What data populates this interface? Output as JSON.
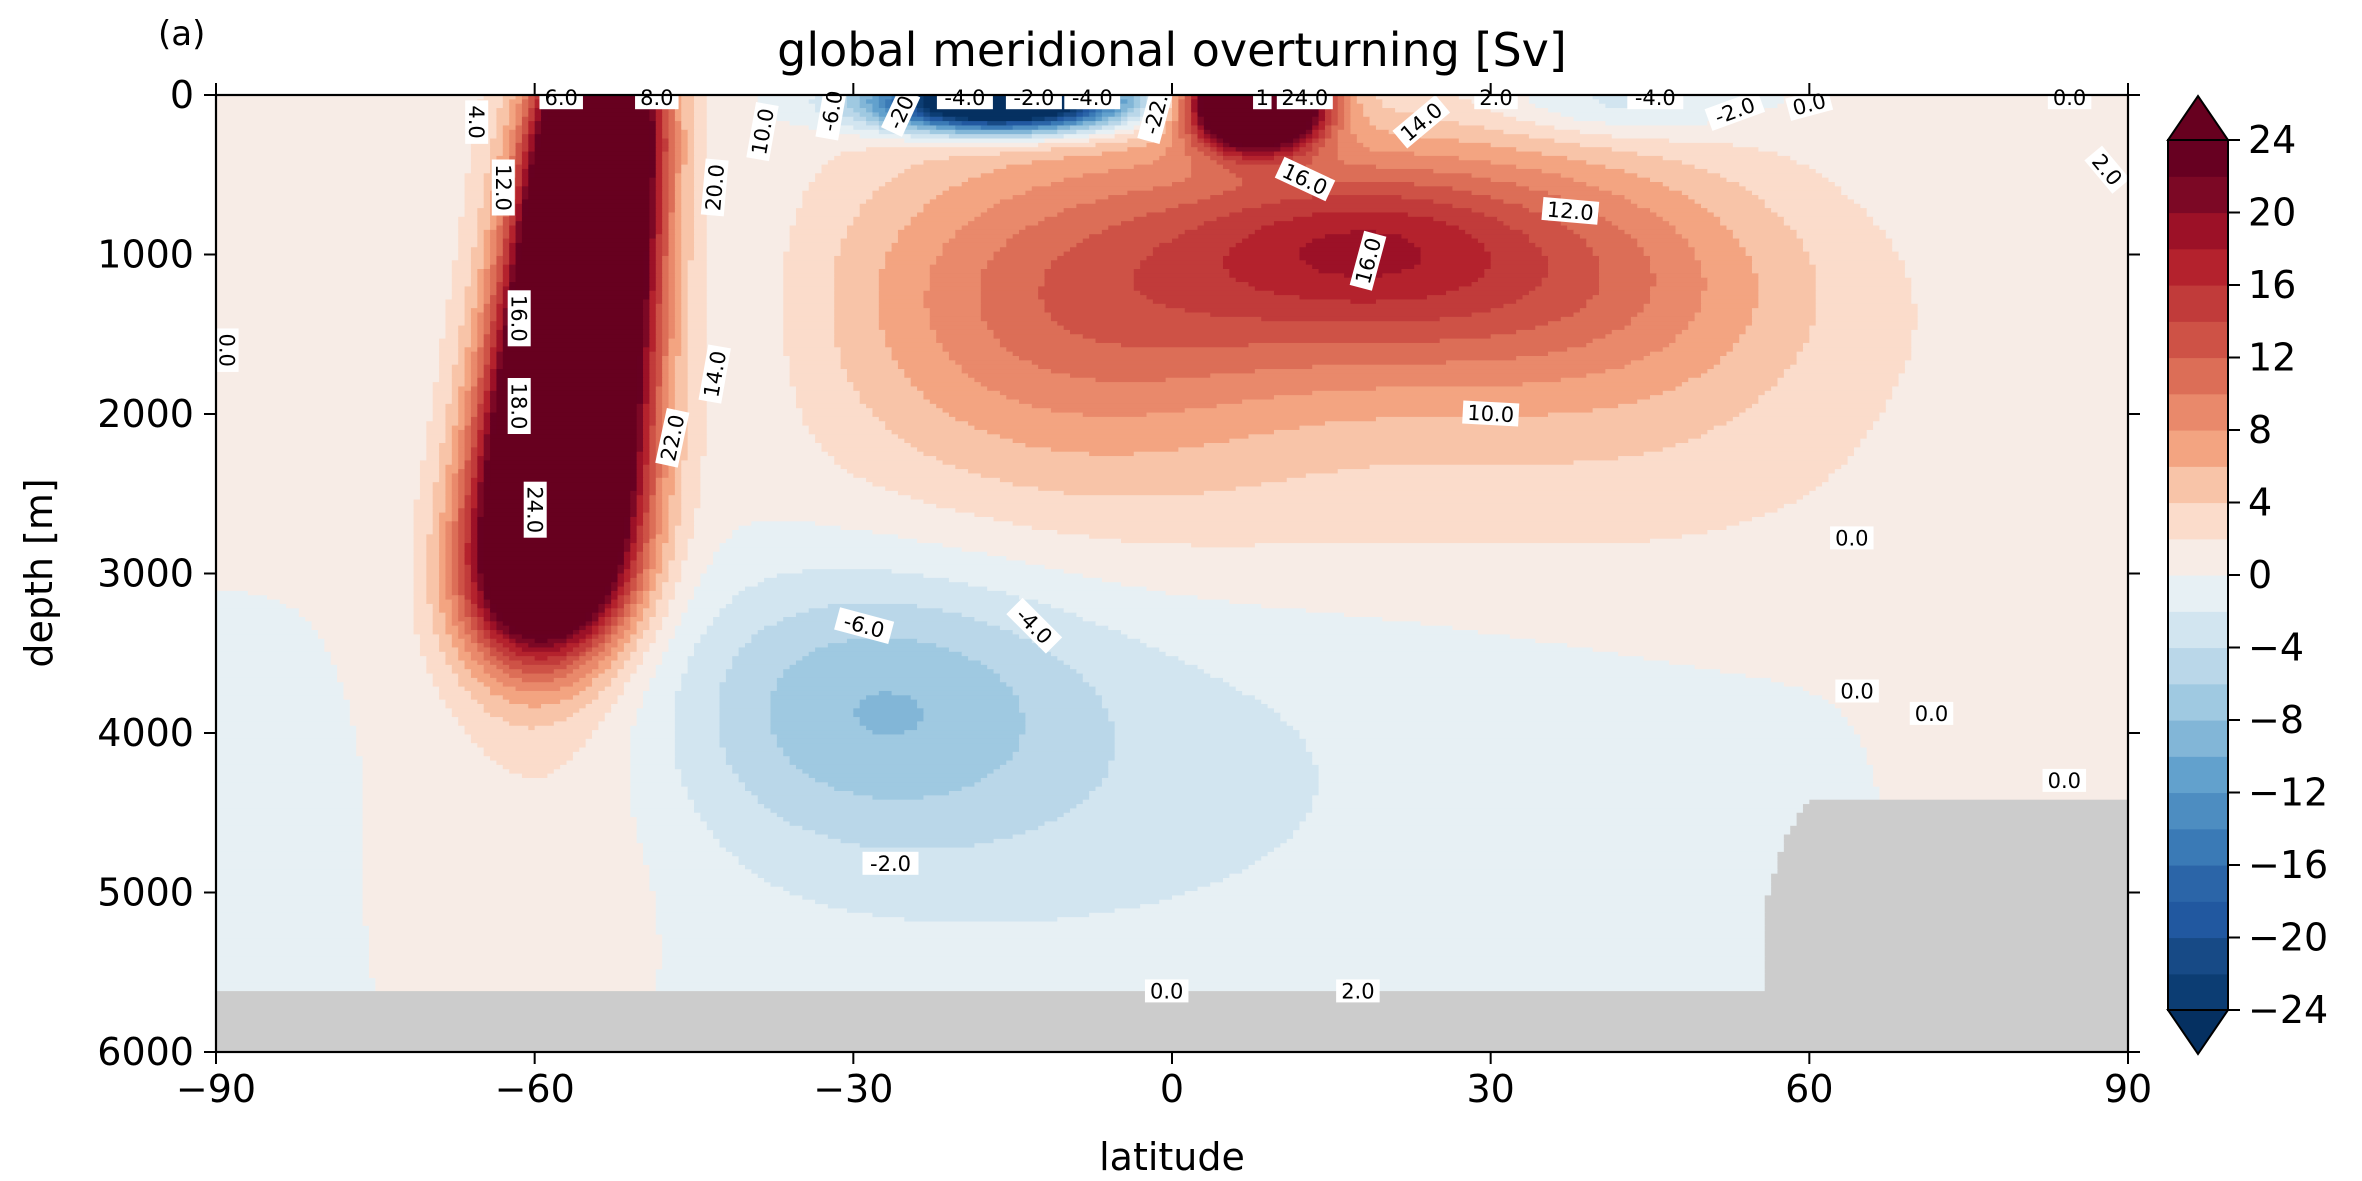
{
  "chart_data": {
    "type": "heatmap",
    "panel_label": "(a)",
    "title": "global meridional overturning [Sv]",
    "xlabel": "latitude",
    "ylabel": "depth [m]",
    "xlim": [
      -90,
      90
    ],
    "ylim": [
      6000,
      0
    ],
    "x_ticks": [
      -90,
      -60,
      -30,
      0,
      30,
      60,
      90
    ],
    "x_tick_labels": [
      "−90",
      "−60",
      "−30",
      "0",
      "30",
      "60",
      "90"
    ],
    "y_ticks": [
      0,
      1000,
      2000,
      3000,
      4000,
      5000,
      6000
    ],
    "y_tick_labels": [
      "0",
      "1000",
      "2000",
      "3000",
      "4000",
      "5000",
      "6000"
    ],
    "colormap": "RdBu_r",
    "colorbar": {
      "levels": [
        -24,
        -22,
        -20,
        -18,
        -16,
        -14,
        -12,
        -10,
        -8,
        -6,
        -4,
        -2,
        0,
        2,
        4,
        6,
        8,
        10,
        12,
        14,
        16,
        18,
        20,
        22,
        24
      ],
      "tick_values": [
        24,
        20,
        16,
        12,
        8,
        4,
        0,
        -4,
        -8,
        -12,
        -16,
        -20,
        -24
      ],
      "tick_labels": [
        "24",
        "20",
        "16",
        "12",
        "8",
        "4",
        "0",
        "−4",
        "−8",
        "−12",
        "−16",
        "−20",
        "−24"
      ],
      "extend": "both"
    },
    "land_color": "#cccccc",
    "contour_labels": [
      {
        "text": "4.0",
        "lat": -65.5,
        "depth": 170,
        "rot": 90
      },
      {
        "text": "6.0",
        "lat": -57.5,
        "depth": 20,
        "rot": 0
      },
      {
        "text": "8.0",
        "lat": -48.5,
        "depth": 20,
        "rot": 0
      },
      {
        "text": "10.0",
        "lat": -38.5,
        "depth": 230,
        "rot": -80
      },
      {
        "text": "12.0",
        "lat": -63,
        "depth": 580,
        "rot": 90
      },
      {
        "text": "20.0",
        "lat": -43,
        "depth": 580,
        "rot": -85
      },
      {
        "text": "16.0",
        "lat": -61.5,
        "depth": 1400,
        "rot": 90
      },
      {
        "text": "18.0",
        "lat": -61.5,
        "depth": 1950,
        "rot": 90
      },
      {
        "text": "24.0",
        "lat": -60,
        "depth": 2600,
        "rot": 90
      },
      {
        "text": "14.0",
        "lat": -43,
        "depth": 1750,
        "rot": -80
      },
      {
        "text": "22.0",
        "lat": -47,
        "depth": 2150,
        "rot": -78
      },
      {
        "text": "0.0",
        "lat": -89,
        "depth": 1600,
        "rot": 90
      },
      {
        "text": "-6.0",
        "lat": -32,
        "depth": 100,
        "rot": -80
      },
      {
        "text": "-20",
        "lat": -25.5,
        "depth": 110,
        "rot": -65
      },
      {
        "text": "-4.0",
        "lat": -19.5,
        "depth": 20,
        "rot": 0
      },
      {
        "text": "-2.0",
        "lat": -13,
        "depth": 20,
        "rot": 0
      },
      {
        "text": "-4.0",
        "lat": -7.5,
        "depth": 20,
        "rot": 0
      },
      {
        "text": "-22.",
        "lat": -1.5,
        "depth": 120,
        "rot": -75
      },
      {
        "text": "1",
        "lat": 8.5,
        "depth": 20,
        "rot": 0
      },
      {
        "text": "24.0",
        "lat": 12.5,
        "depth": 20,
        "rot": 0
      },
      {
        "text": "14.0",
        "lat": 23.5,
        "depth": 170,
        "rot": -40
      },
      {
        "text": "2.0",
        "lat": 30.5,
        "depth": 20,
        "rot": 0
      },
      {
        "text": "-4.0",
        "lat": 45.5,
        "depth": 20,
        "rot": 0
      },
      {
        "text": "-2.0",
        "lat": 53,
        "depth": 100,
        "rot": -20
      },
      {
        "text": "0.0",
        "lat": 60,
        "depth": 60,
        "rot": -15
      },
      {
        "text": "0.0",
        "lat": 84.5,
        "depth": 20,
        "rot": 0
      },
      {
        "text": "2.0",
        "lat": 88,
        "depth": 470,
        "rot": 50
      },
      {
        "text": "16.0",
        "lat": 12.5,
        "depth": 530,
        "rot": 25
      },
      {
        "text": "12.0",
        "lat": 37.5,
        "depth": 730,
        "rot": 5
      },
      {
        "text": "16.0",
        "lat": 18.5,
        "depth": 1040,
        "rot": -75
      },
      {
        "text": "10.0",
        "lat": 30,
        "depth": 2000,
        "rot": 3
      },
      {
        "text": "0.0",
        "lat": 64,
        "depth": 2780,
        "rot": 0
      },
      {
        "text": "-6.0",
        "lat": -29,
        "depth": 3330,
        "rot": 15
      },
      {
        "text": "-4.0",
        "lat": -13,
        "depth": 3330,
        "rot": 45
      },
      {
        "text": "0.0",
        "lat": 64.5,
        "depth": 3740,
        "rot": 0
      },
      {
        "text": "0.0",
        "lat": 71.5,
        "depth": 3880,
        "rot": 0
      },
      {
        "text": "0.0",
        "lat": 84,
        "depth": 4300,
        "rot": 0
      },
      {
        "text": "-2.0",
        "lat": -26.5,
        "depth": 4820,
        "rot": 0
      },
      {
        "text": "0.0",
        "lat": -0.5,
        "depth": 5620,
        "rot": 0
      },
      {
        "text": "2.0",
        "lat": 17.5,
        "depth": 5620,
        "rot": 0
      }
    ]
  }
}
